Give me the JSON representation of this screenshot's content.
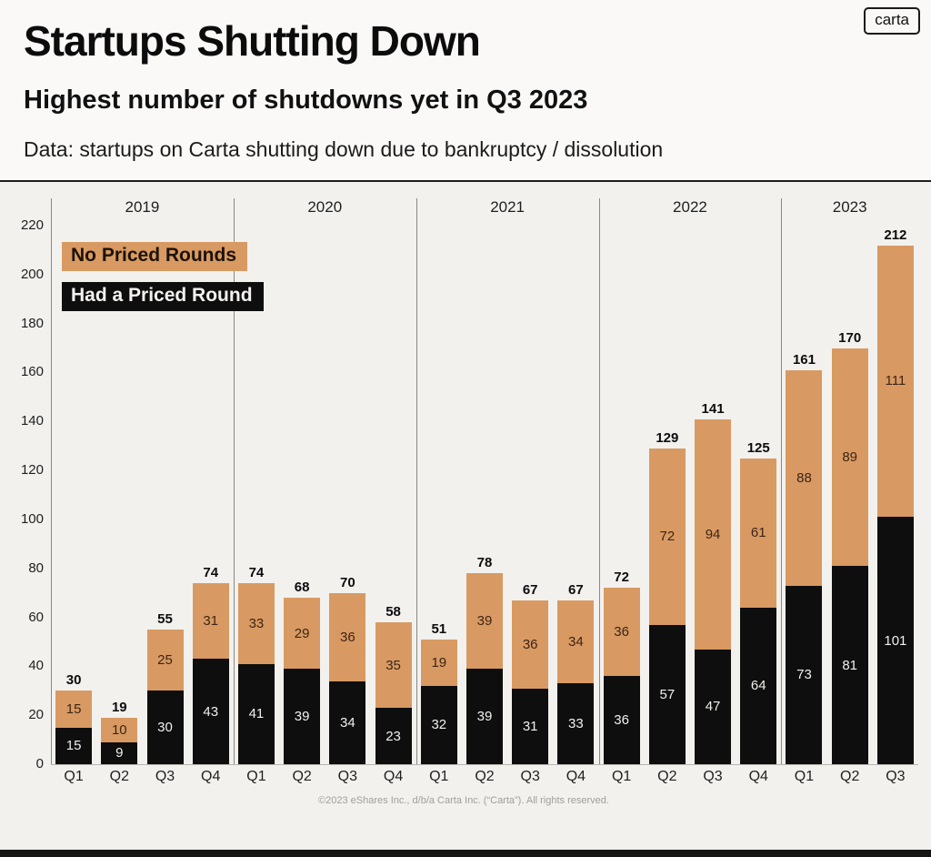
{
  "logo": "carta",
  "header": {
    "title": "Startups Shutting Down",
    "subtitle": "Highest number of shutdowns yet in Q3 2023",
    "note": "Data: startups on Carta shutting down due to bankruptcy / dissolution"
  },
  "legend": [
    {
      "label": "No Priced Rounds",
      "color": "#d89a62"
    },
    {
      "label": "Had a Priced Round",
      "color": "#0e0e0e"
    }
  ],
  "footer": "©2023 eShares Inc., d/b/a Carta Inc. (“Carta”). All rights reserved.",
  "colors": {
    "no_priced": "#d89a62",
    "had_priced": "#0e0e0e",
    "background": "#f2f1ee"
  },
  "chart_data": {
    "type": "bar",
    "stacked": true,
    "title": "Startups Shutting Down",
    "xlabel": "",
    "ylabel": "",
    "ylim": [
      0,
      220
    ],
    "yticks": [
      0,
      20,
      40,
      60,
      80,
      100,
      120,
      140,
      160,
      180,
      200,
      220
    ],
    "grid": false,
    "legend_position": "top-left",
    "series": [
      "No Priced Rounds",
      "Had a Priced Round"
    ],
    "years": [
      {
        "year": "2019",
        "quarters": [
          {
            "q": "Q1",
            "no_priced": 15,
            "had_priced": 15,
            "total": 30
          },
          {
            "q": "Q2",
            "no_priced": 10,
            "had_priced": 9,
            "total": 19
          },
          {
            "q": "Q3",
            "no_priced": 25,
            "had_priced": 30,
            "total": 55
          },
          {
            "q": "Q4",
            "no_priced": 31,
            "had_priced": 43,
            "total": 74
          }
        ]
      },
      {
        "year": "2020",
        "quarters": [
          {
            "q": "Q1",
            "no_priced": 33,
            "had_priced": 41,
            "total": 74
          },
          {
            "q": "Q2",
            "no_priced": 29,
            "had_priced": 39,
            "total": 68
          },
          {
            "q": "Q3",
            "no_priced": 36,
            "had_priced": 34,
            "total": 70
          },
          {
            "q": "Q4",
            "no_priced": 35,
            "had_priced": 23,
            "total": 58
          }
        ]
      },
      {
        "year": "2021",
        "quarters": [
          {
            "q": "Q1",
            "no_priced": 19,
            "had_priced": 32,
            "total": 51
          },
          {
            "q": "Q2",
            "no_priced": 39,
            "had_priced": 39,
            "total": 78
          },
          {
            "q": "Q3",
            "no_priced": 36,
            "had_priced": 31,
            "total": 67
          },
          {
            "q": "Q4",
            "no_priced": 34,
            "had_priced": 33,
            "total": 67
          }
        ]
      },
      {
        "year": "2022",
        "quarters": [
          {
            "q": "Q1",
            "no_priced": 36,
            "had_priced": 36,
            "total": 72
          },
          {
            "q": "Q2",
            "no_priced": 72,
            "had_priced": 57,
            "total": 129
          },
          {
            "q": "Q3",
            "no_priced": 94,
            "had_priced": 47,
            "total": 141
          },
          {
            "q": "Q4",
            "no_priced": 61,
            "had_priced": 64,
            "total": 125
          }
        ]
      },
      {
        "year": "2023",
        "quarters": [
          {
            "q": "Q1",
            "no_priced": 88,
            "had_priced": 73,
            "total": 161
          },
          {
            "q": "Q2",
            "no_priced": 89,
            "had_priced": 81,
            "total": 170
          },
          {
            "q": "Q3",
            "no_priced": 111,
            "had_priced": 101,
            "total": 212
          }
        ]
      }
    ]
  }
}
